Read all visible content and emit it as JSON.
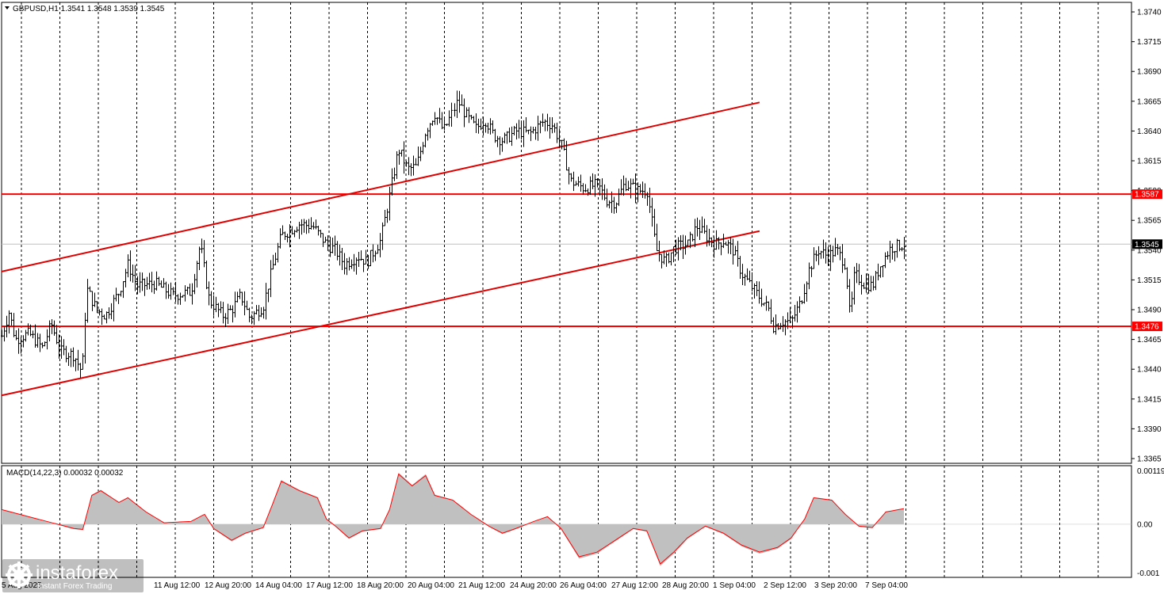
{
  "chart_data": {
    "type": "candlestick",
    "symbol_header": "GBPUSD,H1  1.3541 1.3548 1.3539 1.3545",
    "y_ticks": [
      "1.3740",
      "1.3715",
      "1.3690",
      "1.3665",
      "1.3640",
      "1.3615",
      "1.3590",
      "1.3565",
      "1.3540",
      "1.3515",
      "1.3490",
      "1.3465",
      "1.3440",
      "1.3415",
      "1.3390",
      "1.3365"
    ],
    "ylim": [
      1.3361,
      1.3748
    ],
    "x_ticks": [
      "5 Aug 2025",
      "11 Aug 12:00",
      "12 Aug 20:00",
      "14 Aug 04:00",
      "17 Aug 12:00",
      "18 Aug 20:00",
      "20 Aug 04:00",
      "21 Aug 12:00",
      "24 Aug 20:00",
      "26 Aug 04:00",
      "27 Aug 12:00",
      "28 Aug 20:00",
      "1 Sep 04:00",
      "2 Sep 12:00",
      "3 Sep 20:00",
      "7 Sep 04:00"
    ],
    "current_price": 1.3545,
    "current_price_label": "1.3545",
    "levels": [
      {
        "value": 1.3587,
        "label": "1.3587",
        "color": "#ff0000"
      },
      {
        "value": 1.3476,
        "label": "1.3476",
        "color": "#ff0000"
      }
    ],
    "channel": {
      "upper": {
        "from": [
          0,
          1.3522
        ],
        "to": [
          0.84,
          1.3664
        ]
      },
      "lower": {
        "from": [
          0,
          1.3418
        ],
        "to": [
          0.84,
          1.3556
        ]
      }
    },
    "price_path": [
      [
        0.0,
        1.3468
      ],
      [
        0.008,
        1.3488
      ],
      [
        0.015,
        1.3465
      ],
      [
        0.03,
        1.347
      ],
      [
        0.045,
        1.3458
      ],
      [
        0.055,
        1.3478
      ],
      [
        0.065,
        1.3455
      ],
      [
        0.08,
        1.3452
      ],
      [
        0.089,
        1.3437
      ],
      [
        0.094,
        1.3508
      ],
      [
        0.105,
        1.349
      ],
      [
        0.115,
        1.3485
      ],
      [
        0.13,
        1.3505
      ],
      [
        0.14,
        1.3528
      ],
      [
        0.15,
        1.351
      ],
      [
        0.17,
        1.3512
      ],
      [
        0.19,
        1.3502
      ],
      [
        0.21,
        1.3505
      ],
      [
        0.22,
        1.3545
      ],
      [
        0.23,
        1.3498
      ],
      [
        0.245,
        1.3485
      ],
      [
        0.255,
        1.349
      ],
      [
        0.265,
        1.3502
      ],
      [
        0.275,
        1.3483
      ],
      [
        0.29,
        1.3493
      ],
      [
        0.3,
        1.3525
      ],
      [
        0.31,
        1.3552
      ],
      [
        0.33,
        1.3562
      ],
      [
        0.345,
        1.356
      ],
      [
        0.36,
        1.3545
      ],
      [
        0.37,
        1.354
      ],
      [
        0.38,
        1.3528
      ],
      [
        0.395,
        1.3535
      ],
      [
        0.405,
        1.353
      ],
      [
        0.42,
        1.3548
      ],
      [
        0.43,
        1.3585
      ],
      [
        0.44,
        1.3625
      ],
      [
        0.45,
        1.3608
      ],
      [
        0.46,
        1.361
      ],
      [
        0.47,
        1.364
      ],
      [
        0.48,
        1.3655
      ],
      [
        0.49,
        1.364
      ],
      [
        0.505,
        1.3665
      ],
      [
        0.515,
        1.3652
      ],
      [
        0.525,
        1.3642
      ],
      [
        0.535,
        1.365
      ],
      [
        0.545,
        1.3636
      ],
      [
        0.555,
        1.3632
      ],
      [
        0.57,
        1.364
      ],
      [
        0.585,
        1.3638
      ],
      [
        0.6,
        1.3648
      ],
      [
        0.61,
        1.3645
      ],
      [
        0.62,
        1.3628
      ],
      [
        0.63,
        1.3598
      ],
      [
        0.645,
        1.3592
      ],
      [
        0.66,
        1.3595
      ],
      [
        0.67,
        1.3582
      ],
      [
        0.68,
        1.358
      ],
      [
        0.69,
        1.3596
      ],
      [
        0.705,
        1.359
      ],
      [
        0.715,
        1.359
      ],
      [
        0.725,
        1.354
      ],
      [
        0.735,
        1.353
      ],
      [
        0.745,
        1.3542
      ],
      [
        0.76,
        1.3545
      ],
      [
        0.77,
        1.356
      ],
      [
        0.78,
        1.3552
      ],
      [
        0.79,
        1.3545
      ],
      [
        0.8,
        1.3548
      ],
      [
        0.81,
        1.354
      ],
      [
        0.82,
        1.352
      ],
      [
        0.83,
        1.351
      ],
      [
        0.84,
        1.35
      ],
      [
        0.85,
        1.349
      ],
      [
        0.855,
        1.3476
      ],
      [
        0.865,
        1.348
      ],
      [
        0.875,
        1.348
      ],
      [
        0.885,
        1.3496
      ],
      [
        0.895,
        1.3525
      ],
      [
        0.905,
        1.354
      ],
      [
        0.915,
        1.3535
      ],
      [
        0.925,
        1.354
      ],
      [
        0.935,
        1.3528
      ],
      [
        0.94,
        1.3482
      ],
      [
        0.945,
        1.352
      ],
      [
        0.955,
        1.3512
      ],
      [
        0.965,
        1.351
      ],
      [
        0.975,
        1.353
      ],
      [
        0.985,
        1.3542
      ],
      [
        1.0,
        1.3545
      ]
    ],
    "macd": {
      "label": "MACD(14,22,3) 0.00032 0.00032",
      "y_ticks": [
        "0.00119",
        "0.00",
        "-0.001"
      ],
      "ylim": [
        -0.00108,
        0.00119
      ],
      "hist_color": "#c0c0c0",
      "signal_color": "#ff0000",
      "path": [
        [
          0.0,
          0.0003
        ],
        [
          0.02,
          0.0002
        ],
        [
          0.05,
          5e-05
        ],
        [
          0.08,
          -0.0001
        ],
        [
          0.09,
          -0.00012
        ],
        [
          0.1,
          0.0006
        ],
        [
          0.11,
          0.0007
        ],
        [
          0.13,
          0.00045
        ],
        [
          0.14,
          0.00055
        ],
        [
          0.16,
          0.00025
        ],
        [
          0.18,
          2e-05
        ],
        [
          0.21,
          5e-05
        ],
        [
          0.225,
          0.0002
        ],
        [
          0.235,
          -0.0001
        ],
        [
          0.255,
          -0.00035
        ],
        [
          0.27,
          -0.0002
        ],
        [
          0.29,
          -8e-05
        ],
        [
          0.3,
          0.0004
        ],
        [
          0.31,
          0.0009
        ],
        [
          0.33,
          0.0007
        ],
        [
          0.35,
          0.00055
        ],
        [
          0.36,
          0.0001
        ],
        [
          0.37,
          -5e-05
        ],
        [
          0.385,
          -0.0003
        ],
        [
          0.4,
          -0.00015
        ],
        [
          0.42,
          -0.0001
        ],
        [
          0.43,
          0.0003
        ],
        [
          0.44,
          0.00105
        ],
        [
          0.455,
          0.0008
        ],
        [
          0.47,
          0.00102
        ],
        [
          0.48,
          0.0006
        ],
        [
          0.5,
          0.0005
        ],
        [
          0.52,
          0.0002
        ],
        [
          0.54,
          -5e-05
        ],
        [
          0.555,
          -0.0002
        ],
        [
          0.57,
          -0.0001
        ],
        [
          0.59,
          5e-05
        ],
        [
          0.605,
          0.00015
        ],
        [
          0.62,
          -0.0001
        ],
        [
          0.64,
          -0.0007
        ],
        [
          0.66,
          -0.0006
        ],
        [
          0.68,
          -0.00035
        ],
        [
          0.7,
          -0.0001
        ],
        [
          0.715,
          -0.00015
        ],
        [
          0.73,
          -0.00085
        ],
        [
          0.745,
          -0.0006
        ],
        [
          0.76,
          -0.0003
        ],
        [
          0.78,
          -5e-05
        ],
        [
          0.8,
          -0.0002
        ],
        [
          0.82,
          -0.00045
        ],
        [
          0.84,
          -0.0006
        ],
        [
          0.86,
          -0.0005
        ],
        [
          0.875,
          -0.0003
        ],
        [
          0.89,
          0.0001
        ],
        [
          0.9,
          0.00055
        ],
        [
          0.92,
          0.0005
        ],
        [
          0.935,
          0.0002
        ],
        [
          0.95,
          -5e-05
        ],
        [
          0.965,
          -8e-05
        ],
        [
          0.98,
          0.00025
        ],
        [
          1.0,
          0.00032
        ]
      ]
    }
  },
  "branding": {
    "name": "instaforex",
    "tagline": "Instant Forex Trading"
  }
}
